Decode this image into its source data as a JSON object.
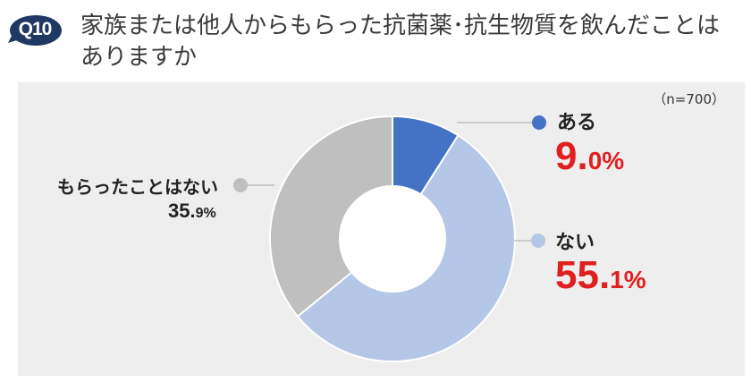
{
  "header": {
    "badge": "Q10",
    "question": "家族または他人からもらった抗菌薬･抗生物質を飲んだことはありますか"
  },
  "colors": {
    "badge": "#1f3864",
    "background": "#eeeeee",
    "highlight": "#e02020"
  },
  "chart_data": {
    "type": "pie",
    "variant": "donut",
    "note": "（n=700）",
    "start": "12 o'clock, clockwise",
    "slices": [
      {
        "label": "ある",
        "value": 9.0,
        "int": "9.",
        "dec": "0",
        "unit": "%",
        "color": "#4472c4"
      },
      {
        "label": "ない",
        "value": 55.1,
        "int": "55.",
        "dec": "1",
        "unit": "%",
        "color": "#b4c7e7"
      },
      {
        "label": "もらったことはない",
        "value": 35.9,
        "int": "35.",
        "dec": "9",
        "unit": "%",
        "color": "#bfbfbf"
      }
    ]
  }
}
